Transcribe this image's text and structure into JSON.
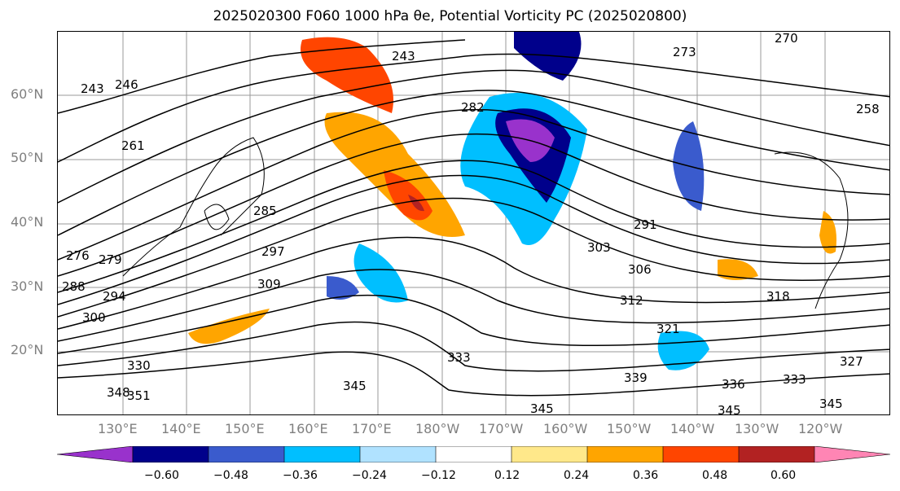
{
  "title": "2025020300 F060 1000 hPa θe, Potential Vorticity PC (2025020800)",
  "map": {
    "lat_labels": [
      "60°N",
      "50°N",
      "40°N",
      "30°N",
      "20°N"
    ],
    "lon_labels": [
      "130°E",
      "140°E",
      "150°E",
      "160°E",
      "170°E",
      "180°W",
      "170°W",
      "160°W",
      "150°W",
      "140°W",
      "130°W",
      "120°W"
    ],
    "contour_labels": [
      "243",
      "246",
      "261",
      "276",
      "279",
      "285",
      "288",
      "294",
      "297",
      "300",
      "309",
      "330",
      "348",
      "351",
      "345",
      "333",
      "303",
      "306",
      "312",
      "321",
      "291",
      "282",
      "273",
      "270",
      "258",
      "318",
      "336",
      "339",
      "327"
    ]
  },
  "colorbar": {
    "ticks": [
      "−0.60",
      "−0.48",
      "−0.36",
      "−0.24",
      "−0.12",
      "0.12",
      "0.24",
      "0.36",
      "0.48",
      "0.60"
    ],
    "colors": [
      "#9932cc",
      "#00008b",
      "#3a5bcd",
      "#00bfff",
      "#b0e2ff",
      "#ffffff",
      "#ffe88a",
      "#ffa500",
      "#ff4500",
      "#b22222",
      "#ff85b4"
    ]
  }
}
